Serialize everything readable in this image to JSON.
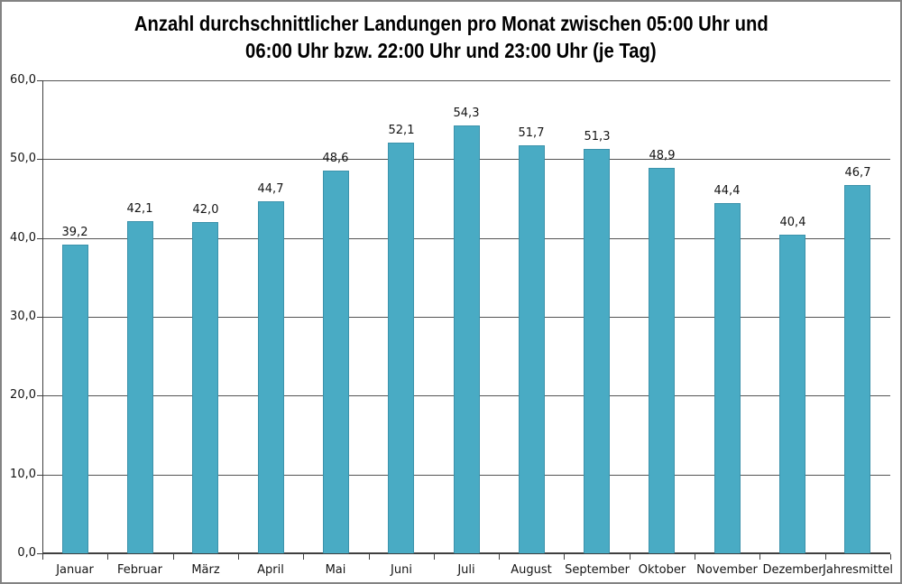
{
  "chart_data": {
    "type": "bar",
    "title": "Anzahl durchschnittlicher Landungen pro Monat zwischen 05:00 Uhr und 06:00 Uhr bzw. 22:00 Uhr und 23:00 Uhr (je Tag)",
    "title_line1": "Anzahl durchschnittlicher Landungen pro Monat zwischen 05:00 Uhr und",
    "title_line2": "06:00 Uhr bzw. 22:00 Uhr und 23:00 Uhr (je Tag)",
    "categories": [
      "Januar",
      "Februar",
      "März",
      "April",
      "Mai",
      "Juni",
      "Juli",
      "August",
      "September",
      "Oktober",
      "November",
      "Dezember",
      "Jahresmittel"
    ],
    "values": [
      39.2,
      42.1,
      42.0,
      44.7,
      48.6,
      52.1,
      54.3,
      51.7,
      51.3,
      48.9,
      44.4,
      40.4,
      46.7
    ],
    "data_labels": [
      "39,2",
      "42,1",
      "42,0",
      "44,7",
      "48,6",
      "52,1",
      "54,3",
      "51,7",
      "51,3",
      "48,9",
      "44,4",
      "40,4",
      "46,7"
    ],
    "xlabel": "",
    "ylabel": "",
    "ylim": [
      0,
      60
    ],
    "ytick_step": 10,
    "ytick_labels": [
      "0,0",
      "10,0",
      "20,0",
      "30,0",
      "40,0",
      "50,0",
      "60,0"
    ],
    "grid": true,
    "legend": "none",
    "bar_color": "#49ABC4",
    "bar_border_color": "#3B92AB",
    "gridline_color": "#545454",
    "axis_color": "#3F3F3F",
    "frame_border_color": "#838383",
    "text_color": "#141414"
  }
}
